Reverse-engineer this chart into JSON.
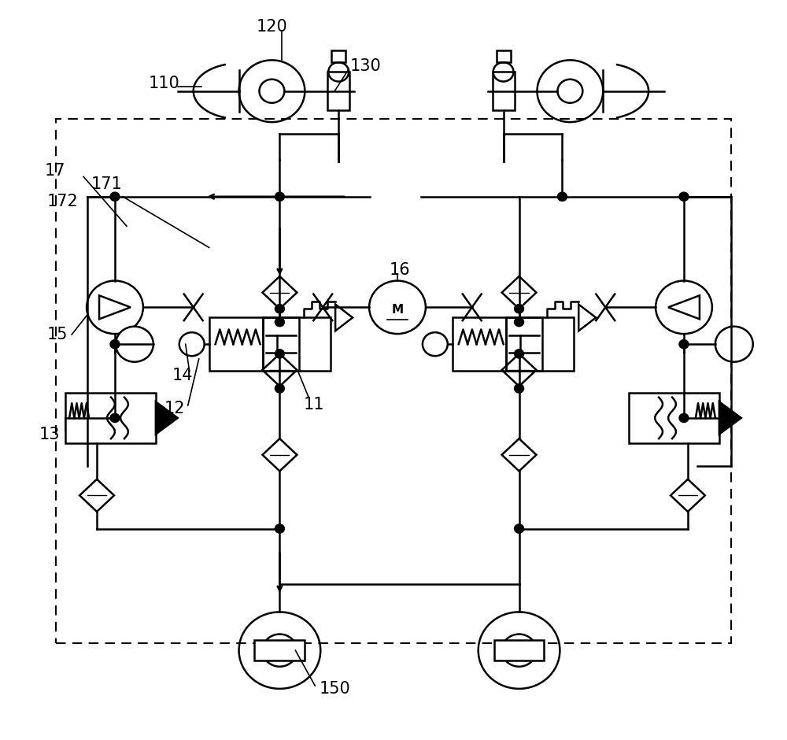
{
  "bg_color": "#ffffff",
  "line_color": "#000000",
  "font_size": 14
}
